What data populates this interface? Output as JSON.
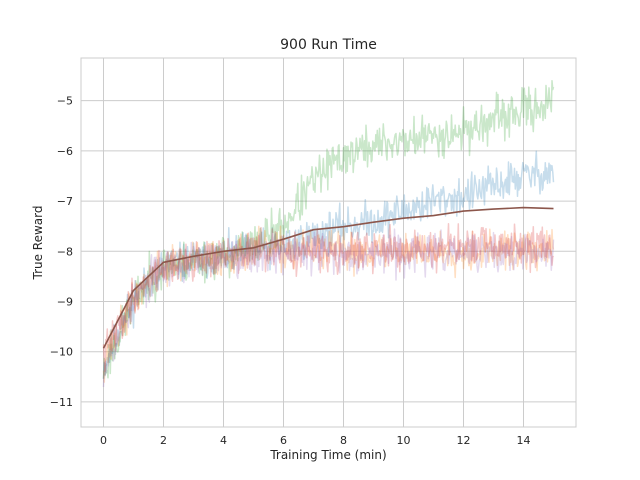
{
  "chart_data": {
    "type": "line",
    "title": "900 Run Time",
    "xlabel": "Training Time (min)",
    "ylabel": "True Reward",
    "xlim": [
      -0.75,
      15.75
    ],
    "ylim": [
      -11.5,
      -4.15
    ],
    "xticks": [
      0,
      2,
      4,
      6,
      8,
      10,
      12,
      14
    ],
    "yticks": [
      -11,
      -10,
      -9,
      -8,
      -7,
      -6,
      -5
    ],
    "grid": true,
    "background": "#ffffff",
    "grid_color": "#cccccc",
    "spine_color": "#cccccc",
    "series": [
      {
        "color": "#1f77b4",
        "alpha": 0.25,
        "noise": 0.35,
        "seed": 11,
        "x": [
          0,
          0.5,
          1,
          1.5,
          2,
          3,
          4,
          5,
          6,
          7,
          8,
          9,
          10,
          11,
          12,
          13,
          14,
          15
        ],
        "y": [
          -10.3,
          -9.6,
          -9.0,
          -8.6,
          -8.3,
          -8.2,
          -8.1,
          -8.0,
          -7.9,
          -7.7,
          -7.5,
          -7.4,
          -7.2,
          -7.0,
          -6.9,
          -6.7,
          -6.5,
          -6.4
        ]
      },
      {
        "color": "#2ca02c",
        "alpha": 0.25,
        "noise": 0.38,
        "seed": 23,
        "x": [
          0,
          0.5,
          1,
          1.5,
          2,
          3,
          4,
          5,
          6,
          7,
          8,
          9,
          10,
          11,
          12,
          13,
          14,
          15
        ],
        "y": [
          -10.4,
          -9.7,
          -9.0,
          -8.6,
          -8.3,
          -8.2,
          -8.1,
          -7.9,
          -7.5,
          -6.6,
          -6.1,
          -5.9,
          -5.8,
          -5.7,
          -5.6,
          -5.4,
          -5.2,
          -5.0
        ]
      },
      {
        "color": "#ff7f0e",
        "alpha": 0.25,
        "noise": 0.35,
        "seed": 37,
        "x": [
          0,
          0.5,
          1,
          1.5,
          2,
          3,
          4,
          5,
          6,
          7,
          8,
          9,
          10,
          11,
          12,
          13,
          14,
          15
        ],
        "y": [
          -10.2,
          -9.6,
          -9.0,
          -8.6,
          -8.3,
          -8.2,
          -8.1,
          -8.0,
          -8.0,
          -8.0,
          -8.0,
          -8.0,
          -8.0,
          -8.0,
          -8.0,
          -8.0,
          -8.0,
          -8.0
        ]
      },
      {
        "color": "#d62728",
        "alpha": 0.25,
        "noise": 0.35,
        "seed": 41,
        "x": [
          0,
          0.5,
          1,
          1.5,
          2,
          3,
          4,
          5,
          6,
          7,
          8,
          9,
          10,
          11,
          12,
          13,
          14,
          15
        ],
        "y": [
          -10.1,
          -9.5,
          -8.9,
          -8.5,
          -8.3,
          -8.2,
          -8.1,
          -8.0,
          -8.0,
          -8.0,
          -8.0,
          -8.0,
          -7.95,
          -7.95,
          -7.9,
          -7.9,
          -7.9,
          -7.9
        ]
      },
      {
        "color": "#9467bd",
        "alpha": 0.25,
        "noise": 0.35,
        "seed": 53,
        "x": [
          0,
          0.5,
          1,
          1.5,
          2,
          3,
          4,
          5,
          6,
          7,
          8,
          9,
          10,
          11,
          12,
          13,
          14,
          15
        ],
        "y": [
          -10.3,
          -9.6,
          -9.0,
          -8.6,
          -8.35,
          -8.2,
          -8.1,
          -8.05,
          -8.05,
          -8.05,
          -8.05,
          -8.05,
          -8.05,
          -8.05,
          -8.05,
          -8.05,
          -8.05,
          -8.05
        ]
      },
      {
        "color": "#8c564b",
        "alpha": 1.0,
        "noise": 0,
        "seed": 0,
        "width": 1.6,
        "x": [
          0,
          1,
          2,
          3,
          4,
          5,
          6,
          7,
          8,
          9,
          10,
          11,
          12,
          13,
          14,
          15
        ],
        "y": [
          -9.93,
          -8.78,
          -8.22,
          -8.1,
          -8.0,
          -7.93,
          -7.76,
          -7.57,
          -7.51,
          -7.42,
          -7.34,
          -7.29,
          -7.2,
          -7.16,
          -7.13,
          -7.15
        ]
      }
    ]
  }
}
